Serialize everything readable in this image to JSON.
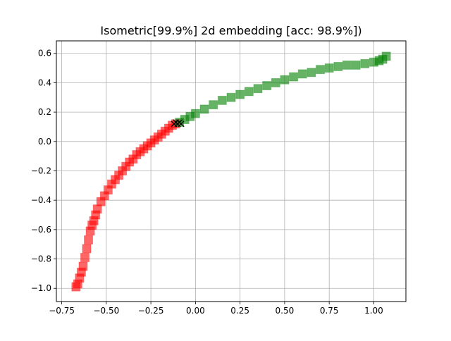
{
  "chart_data": {
    "type": "scatter",
    "title": "Isometric[99.9%] 2d embedding [acc: 98.9%])",
    "xlabel": "",
    "ylabel": "",
    "xlim": [
      -0.78,
      1.18
    ],
    "ylim": [
      -1.09,
      0.685
    ],
    "xticks": [
      -0.75,
      -0.5,
      -0.25,
      0.0,
      0.25,
      0.5,
      0.75,
      1.0
    ],
    "xtick_labels": [
      "−0.75",
      "−0.50",
      "−0.25",
      "0.00",
      "0.25",
      "0.50",
      "0.75",
      "1.00"
    ],
    "yticks": [
      -1.0,
      -0.8,
      -0.6,
      -0.4,
      -0.2,
      0.0,
      0.2,
      0.4,
      0.6
    ],
    "ytick_labels": [
      "−1.0",
      "−0.8",
      "−0.6",
      "−0.4",
      "−0.2",
      "0.0",
      "0.2",
      "0.4",
      "0.6"
    ],
    "grid": true,
    "series": [
      {
        "color": "#ff0000",
        "marker": "square",
        "x": [
          -0.67,
          -0.66,
          -0.65,
          -0.64,
          -0.63,
          -0.62,
          -0.61,
          -0.6,
          -0.59,
          -0.58,
          -0.57,
          -0.56,
          -0.55,
          -0.53,
          -0.51,
          -0.49,
          -0.47,
          -0.45,
          -0.43,
          -0.41,
          -0.39,
          -0.37,
          -0.35,
          -0.33,
          -0.31,
          -0.29,
          -0.27,
          -0.25,
          -0.23,
          -0.21,
          -0.19,
          -0.17,
          -0.15,
          -0.13,
          -0.11
        ],
        "y": [
          -0.99,
          -0.97,
          -0.93,
          -0.89,
          -0.85,
          -0.79,
          -0.73,
          -0.67,
          -0.61,
          -0.57,
          -0.54,
          -0.5,
          -0.46,
          -0.41,
          -0.37,
          -0.33,
          -0.29,
          -0.26,
          -0.23,
          -0.2,
          -0.17,
          -0.14,
          -0.12,
          -0.09,
          -0.07,
          -0.05,
          -0.03,
          -0.01,
          0.01,
          0.03,
          0.05,
          0.07,
          0.09,
          0.11,
          0.12
        ]
      },
      {
        "color": "#008000",
        "marker": "square",
        "x": [
          -0.09,
          -0.06,
          -0.03,
          0.0,
          0.05,
          0.1,
          0.15,
          0.2,
          0.25,
          0.3,
          0.35,
          0.4,
          0.45,
          0.5,
          0.55,
          0.6,
          0.65,
          0.7,
          0.75,
          0.8,
          0.85,
          0.9,
          0.95,
          1.0,
          1.03,
          1.05,
          1.07
        ],
        "y": [
          0.13,
          0.15,
          0.17,
          0.19,
          0.22,
          0.25,
          0.28,
          0.3,
          0.32,
          0.34,
          0.36,
          0.38,
          0.4,
          0.42,
          0.44,
          0.46,
          0.47,
          0.49,
          0.5,
          0.51,
          0.52,
          0.52,
          0.53,
          0.54,
          0.55,
          0.56,
          0.58
        ]
      },
      {
        "color": "#000000",
        "marker": "x",
        "x": [
          -0.12,
          -0.11,
          -0.1,
          -0.09,
          -0.08
        ],
        "y": [
          0.12,
          0.13,
          0.12,
          0.13,
          0.12
        ]
      }
    ]
  }
}
